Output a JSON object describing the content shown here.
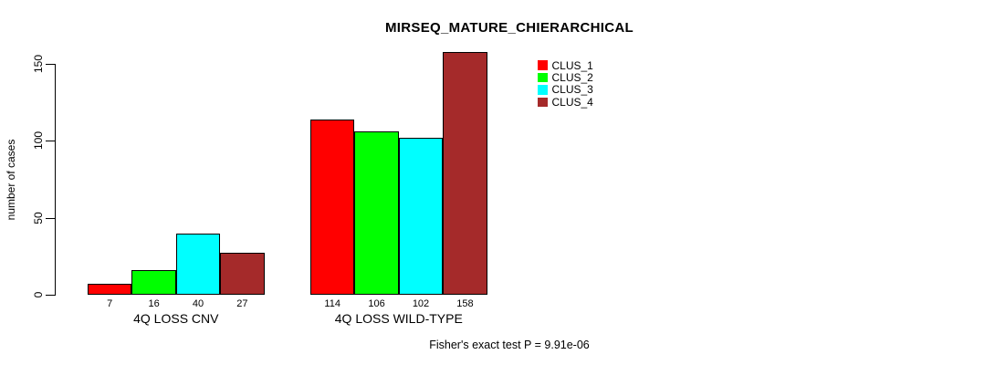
{
  "chart_data": {
    "type": "bar",
    "title": "MIRSEQ_MATURE_CHIERARCHICAL",
    "ylabel": "number of cases",
    "xlabel": "",
    "ylim": [
      0,
      150
    ],
    "yticks": [
      0,
      50,
      100,
      150
    ],
    "grid": false,
    "legend_position": "top-right-inside",
    "bar_value_labels_shown": true,
    "categories": [
      "4Q LOSS CNV",
      "4Q LOSS WILD-TYPE"
    ],
    "series": [
      {
        "name": "CLUS_1",
        "color": "#FF0000",
        "values": [
          7,
          114
        ]
      },
      {
        "name": "CLUS_2",
        "color": "#00FF00",
        "values": [
          16,
          106
        ]
      },
      {
        "name": "CLUS_3",
        "color": "#00FFFF",
        "values": [
          40,
          102
        ]
      },
      {
        "name": "CLUS_4",
        "color": "#A52A2A",
        "values": [
          27,
          158
        ]
      }
    ],
    "annotation": "Fisher's exact test P = 9.91e-06"
  },
  "colors": {
    "background": "#FFFFFF",
    "axis": "#000000",
    "text": "#000000"
  }
}
